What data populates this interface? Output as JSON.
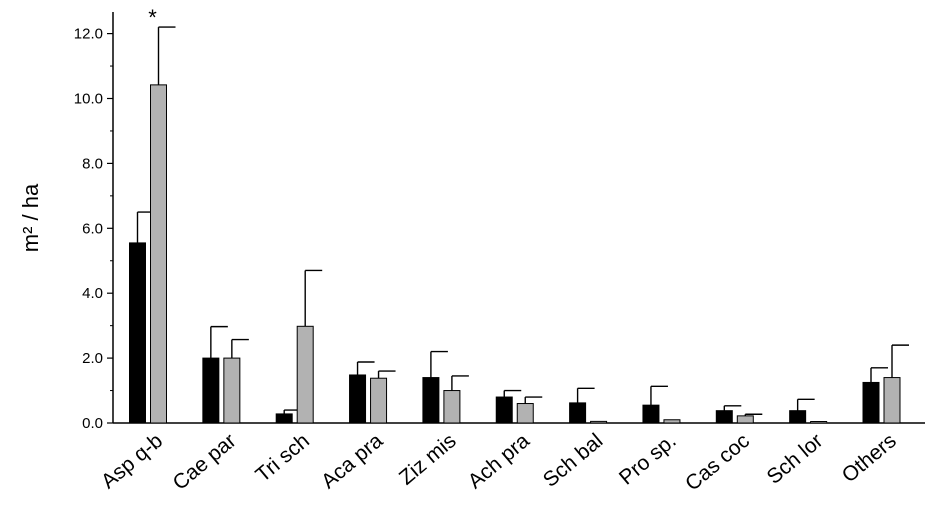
{
  "chart_data": {
    "type": "bar",
    "ylabel": "m² / ha",
    "ylim": [
      0,
      12.5
    ],
    "yticks": [
      "0.0",
      "2.0",
      "4.0",
      "6.0",
      "8.0",
      "10.0",
      "12.0"
    ],
    "grid": false,
    "legend": "none",
    "categories": [
      "Asp q-b",
      "Cae par",
      "Tri sch",
      "Aca pra",
      "Ziz mis",
      "Ach pra",
      "Sch bal",
      "Pro sp.",
      "Cas coc",
      "Sch lor",
      "Others"
    ],
    "series": [
      {
        "color": "#000000",
        "values": [
          5.55,
          2.0,
          0.28,
          1.48,
          1.4,
          0.8,
          0.62,
          0.55,
          0.38,
          0.38,
          1.25
        ],
        "errors": [
          0.95,
          0.97,
          0.12,
          0.4,
          0.8,
          0.2,
          0.45,
          0.58,
          0.15,
          0.35,
          0.45
        ]
      },
      {
        "color": "#b2b2b2",
        "values": [
          10.42,
          2.0,
          2.98,
          1.38,
          1.0,
          0.6,
          0.05,
          0.1,
          0.22,
          0.03,
          1.4
        ],
        "errors": [
          1.78,
          0.57,
          1.72,
          0.22,
          0.45,
          0.2,
          0.0,
          0.0,
          0.05,
          0.0,
          1.0
        ]
      }
    ],
    "annotations": [
      {
        "text": "*",
        "category": "Asp q-b",
        "series": 1
      }
    ]
  }
}
